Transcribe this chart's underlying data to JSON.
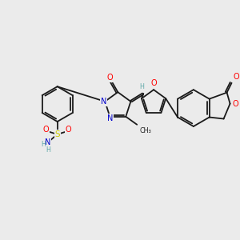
{
  "bg_color": "#ebebeb",
  "bond_color": "#1a1a1a",
  "atom_colors": {
    "O": "#ff0000",
    "N": "#0000cd",
    "S": "#cccc00",
    "H": "#5fa8a8",
    "C": "#1a1a1a"
  },
  "figsize": [
    3.0,
    3.0
  ],
  "dpi": 100,
  "lw": 1.3,
  "fs": 7.0,
  "fs_small": 5.8
}
